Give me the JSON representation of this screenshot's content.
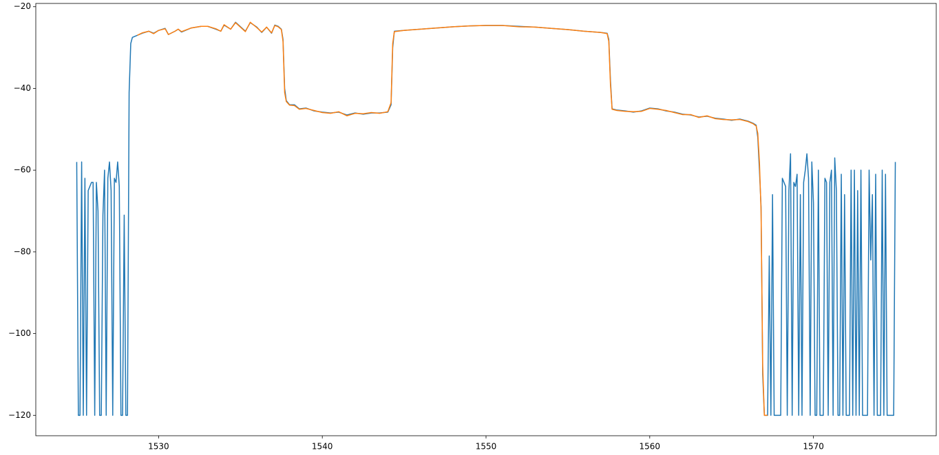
{
  "chart_data": {
    "type": "line",
    "xlim": [
      1522.5,
      1577.5
    ],
    "ylim": [
      -125,
      -19.2
    ],
    "xticks": [
      1530,
      1540,
      1550,
      1560,
      1570
    ],
    "yticks": [
      {
        "value": -120,
        "label": "−120"
      },
      {
        "value": -100,
        "label": "−100"
      },
      {
        "value": -80,
        "label": "−80"
      },
      {
        "value": -60,
        "label": "−60"
      },
      {
        "value": -40,
        "label": "−40"
      },
      {
        "value": -20,
        "label": "−20"
      }
    ],
    "grid": false,
    "series": [
      {
        "color": "#1f77b4",
        "x": [
          1525.0,
          1525.1,
          1525.2,
          1525.3,
          1525.4,
          1525.5,
          1525.6,
          1525.7,
          1525.8,
          1525.9,
          1526.0,
          1526.1,
          1526.2,
          1526.3,
          1526.4,
          1526.5,
          1526.6,
          1526.7,
          1526.8,
          1526.9,
          1527.0,
          1527.1,
          1527.2,
          1527.3,
          1527.4,
          1527.5,
          1527.6,
          1527.7,
          1527.8,
          1527.9,
          1528.0,
          1528.1,
          1528.2,
          1528.3,
          1528.4,
          1528.7,
          1529.0,
          1529.4,
          1529.7,
          1530.0,
          1530.4,
          1530.6,
          1531.0,
          1531.2,
          1531.4,
          1532.0,
          1532.6,
          1533.0,
          1533.5,
          1533.8,
          1534.0,
          1534.4,
          1534.7,
          1535.3,
          1535.6,
          1536.0,
          1536.3,
          1536.6,
          1536.9,
          1537.1,
          1537.3,
          1537.5,
          1537.6,
          1537.7,
          1537.8,
          1538.0,
          1538.3,
          1538.6,
          1539.0,
          1539.5,
          1540.0,
          1540.5,
          1541.0,
          1541.5,
          1542.0,
          1542.5,
          1543.0,
          1543.5,
          1544.0,
          1544.2,
          1544.3,
          1544.4,
          1545.0,
          1546.0,
          1547.0,
          1548.0,
          1549.0,
          1550.0,
          1551.0,
          1552.0,
          1553.0,
          1554.0,
          1555.0,
          1556.0,
          1557.0,
          1557.4,
          1557.5,
          1557.6,
          1557.7,
          1558.0,
          1558.5,
          1559.0,
          1559.5,
          1560.0,
          1560.5,
          1561.0,
          1561.5,
          1562.0,
          1562.5,
          1563.0,
          1563.5,
          1564.0,
          1564.5,
          1565.0,
          1565.5,
          1566.0,
          1566.3,
          1566.5,
          1566.6,
          1566.7,
          1566.8,
          1566.9,
          1567.0,
          1567.1,
          1567.2,
          1567.3,
          1567.4,
          1567.5,
          1567.6,
          1567.7,
          1567.8,
          1567.9,
          1568.0,
          1568.1,
          1568.2,
          1568.3,
          1568.4,
          1568.5,
          1568.6,
          1568.7,
          1568.8,
          1568.9,
          1569.0,
          1569.1,
          1569.2,
          1569.3,
          1569.4,
          1569.5,
          1569.6,
          1569.7,
          1569.8,
          1569.9,
          1570.0,
          1570.1,
          1570.2,
          1570.3,
          1570.4,
          1570.5,
          1570.6,
          1570.7,
          1570.8,
          1570.9,
          1571.0,
          1571.1,
          1571.2,
          1571.3,
          1571.4,
          1571.5,
          1571.6,
          1571.7,
          1571.8,
          1571.9,
          1572.0,
          1572.1,
          1572.2,
          1572.3,
          1572.4,
          1572.5,
          1572.6,
          1572.7,
          1572.8,
          1572.9,
          1573.0,
          1573.1,
          1573.2,
          1573.3,
          1573.4,
          1573.5,
          1573.6,
          1573.7,
          1573.8,
          1573.9,
          1574.0,
          1574.1,
          1574.2,
          1574.3,
          1574.4,
          1574.5,
          1574.6,
          1574.7,
          1574.8,
          1574.9,
          1575.0
        ],
        "values": [
          -58,
          -120,
          -120,
          -58,
          -120,
          -62,
          -120,
          -65,
          -64,
          -63,
          -63,
          -120,
          -63,
          -70,
          -120,
          -120,
          -71,
          -60,
          -120,
          -62,
          -58,
          -65,
          -120,
          -62,
          -63,
          -58,
          -64,
          -120,
          -120,
          -71,
          -120,
          -120,
          -41,
          -29,
          -27.5,
          -27,
          -26.5,
          -26,
          -26.5,
          -25.8,
          -25.3,
          -26.8,
          -26,
          -25.5,
          -26.2,
          -25.2,
          -24.8,
          -24.8,
          -25.5,
          -26,
          -24.5,
          -25.5,
          -23.8,
          -26,
          -23.9,
          -25,
          -26.3,
          -25,
          -26.5,
          -24.5,
          -24.8,
          -25.5,
          -28,
          -40,
          -43,
          -44,
          -44,
          -45,
          -44.8,
          -45.5,
          -45.8,
          -46,
          -45.8,
          -46.5,
          -46,
          -46.3,
          -46,
          -46,
          -45.8,
          -44,
          -30,
          -26,
          -25.8,
          -25.5,
          -25.2,
          -24.9,
          -24.7,
          -24.6,
          -24.6,
          -24.8,
          -25,
          -25.3,
          -25.6,
          -26,
          -26.3,
          -26.5,
          -28,
          -38,
          -45,
          -45.3,
          -45.5,
          -45.8,
          -45.5,
          -44.8,
          -45,
          -45.5,
          -45.8,
          -46.3,
          -46.5,
          -47,
          -46.8,
          -47.3,
          -47.5,
          -47.8,
          -47.5,
          -48,
          -48.5,
          -49,
          -52,
          -60,
          -69,
          -110,
          -120,
          -120,
          -120,
          -81,
          -120,
          -66,
          -120,
          -120,
          -120,
          -120,
          -120,
          -62,
          -63,
          -64,
          -120,
          -65,
          -56,
          -120,
          -63,
          -64,
          -61,
          -120,
          -66,
          -120,
          -63,
          -60,
          -56,
          -62,
          -120,
          -58,
          -68,
          -120,
          -120,
          -60,
          -120,
          -120,
          -120,
          -62,
          -63,
          -120,
          -63,
          -60,
          -120,
          -57,
          -65,
          -120,
          -120,
          -61,
          -120,
          -66,
          -120,
          -120,
          -120,
          -60,
          -120,
          -60,
          -120,
          -65,
          -120,
          -60,
          -120,
          -120,
          -120,
          -120,
          -60,
          -82,
          -66,
          -120,
          -61,
          -120,
          -120,
          -120,
          -60,
          -120,
          -61,
          -120,
          -120,
          -120,
          -120,
          -120,
          -58
        ]
      },
      {
        "color": "#ff7f0e",
        "x": [
          1528.7,
          1529.0,
          1529.4,
          1529.7,
          1530.0,
          1530.4,
          1530.6,
          1531.0,
          1531.2,
          1531.4,
          1532.0,
          1532.6,
          1533.0,
          1533.5,
          1533.8,
          1534.0,
          1534.4,
          1534.7,
          1535.3,
          1535.6,
          1536.0,
          1536.3,
          1536.6,
          1536.9,
          1537.1,
          1537.3,
          1537.5,
          1537.6,
          1537.7,
          1537.8,
          1538.0,
          1538.3,
          1538.6,
          1539.0,
          1539.5,
          1540.0,
          1540.5,
          1541.0,
          1541.5,
          1542.0,
          1542.5,
          1543.0,
          1543.5,
          1544.0,
          1544.2,
          1544.3,
          1544.4,
          1545.0,
          1546.0,
          1547.0,
          1548.0,
          1549.0,
          1550.0,
          1551.0,
          1552.0,
          1553.0,
          1554.0,
          1555.0,
          1556.0,
          1557.0,
          1557.4,
          1557.5,
          1557.6,
          1557.7,
          1558.0,
          1558.5,
          1559.0,
          1559.5,
          1560.0,
          1560.5,
          1561.0,
          1561.5,
          1562.0,
          1562.5,
          1563.0,
          1563.5,
          1564.0,
          1564.5,
          1565.0,
          1565.5,
          1566.0,
          1566.3,
          1566.5,
          1566.6,
          1566.7,
          1566.8,
          1566.9,
          1567.0,
          1567.1,
          1567.2
        ],
        "values": [
          -27,
          -26.4,
          -26,
          -26.6,
          -25.8,
          -25.4,
          -26.8,
          -26,
          -25.5,
          -26.1,
          -25.2,
          -24.8,
          -24.8,
          -25.4,
          -26,
          -24.4,
          -25.5,
          -23.9,
          -26.1,
          -23.8,
          -25.1,
          -26.2,
          -25,
          -26.4,
          -24.6,
          -24.9,
          -25.6,
          -28.5,
          -41,
          -43.2,
          -44.1,
          -44.2,
          -45.1,
          -44.9,
          -45.4,
          -45.9,
          -46.1,
          -45.7,
          -46.7,
          -46.1,
          -46.2,
          -45.9,
          -46.1,
          -45.7,
          -43.5,
          -29,
          -26.1,
          -25.8,
          -25.5,
          -25.2,
          -24.9,
          -24.7,
          -24.6,
          -24.6,
          -24.9,
          -25,
          -25.3,
          -25.6,
          -26,
          -26.3,
          -26.6,
          -28.5,
          -39,
          -45.1,
          -45.4,
          -45.6,
          -45.7,
          -45.6,
          -44.9,
          -45.1,
          -45.4,
          -45.9,
          -46.4,
          -46.4,
          -47.1,
          -46.7,
          -47.4,
          -47.6,
          -47.7,
          -47.6,
          -48.1,
          -48.6,
          -49.2,
          -51,
          -58,
          -70,
          -108,
          -120,
          -120,
          -120
        ]
      }
    ]
  }
}
